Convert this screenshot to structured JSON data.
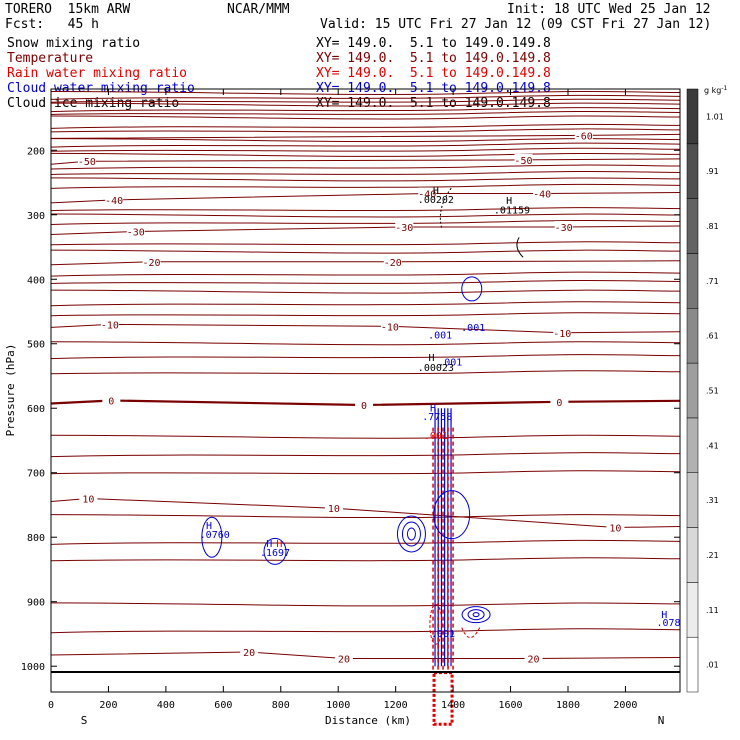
{
  "header": {
    "model": "TORERO  15km ARW",
    "center": "NCAR/MMM",
    "init": "Init: 18 UTC Wed 25 Jan 12",
    "fcst": "Fcst:   45 h",
    "valid": "Valid: 15 UTC Fri 27 Jan 12 (09 CST Fri 27 Jan 12)",
    "fields": [
      {
        "label": "Snow mixing ratio",
        "xy": "XY= 149.0.  5.1 to 149.0.149.8",
        "color": "#000000"
      },
      {
        "label": "Temperature",
        "xy": "XY= 149.0.  5.1 to 149.0.149.8",
        "color": "#7a0000"
      },
      {
        "label": "Rain water mixing ratio",
        "xy": "XY= 149.0.  5.1 to 149.0.149.8",
        "color": "#e00000"
      },
      {
        "label": "Cloud water mixing ratio",
        "xy": "XY= 149.0.  5.1 to 149.0.149.8",
        "color": "#0000d0"
      },
      {
        "label": "Cloud ice mixing ratio",
        "xy": "XY= 149.0.  5.1 to 149.0.149.8",
        "color": "#000000"
      }
    ]
  },
  "chart_data": {
    "type": "contour cross-section",
    "xlabel": "Distance (km)",
    "ylabel": "Pressure (hPa)",
    "x_ticks": [
      0,
      200,
      400,
      600,
      800,
      1000,
      1200,
      1400,
      1600,
      1800,
      2000
    ],
    "y_ticks": [
      200,
      300,
      400,
      500,
      600,
      700,
      800,
      900,
      1000
    ],
    "xlim": [
      0,
      2190
    ],
    "ylim": [
      1040,
      105
    ],
    "x_left_label": "S",
    "x_right_label": "N",
    "colorbar": {
      "unit_label": "g kg",
      "unit_sup": "-1",
      "levels": [
        ".01",
        ".11",
        ".21",
        ".31",
        ".41",
        ".51",
        ".61",
        ".71",
        ".81",
        ".91",
        "1.01"
      ]
    },
    "temperature_isotherms": [
      {
        "value": 20,
        "labels": [
          {
            "text": "20",
            "x": 690,
            "p": 978
          },
          {
            "text": "20",
            "x": 1020,
            "p": 988
          },
          {
            "text": "20",
            "x": 1680,
            "p": 988
          }
        ]
      },
      {
        "value": 10,
        "labels": [
          {
            "text": "10",
            "x": 130,
            "p": 740
          },
          {
            "text": "10",
            "x": 985,
            "p": 755
          },
          {
            "text": "10",
            "x": 1965,
            "p": 785
          }
        ]
      },
      {
        "value": 0,
        "labels": [
          {
            "text": "0",
            "x": 210,
            "p": 588
          },
          {
            "text": "0",
            "x": 1090,
            "p": 595
          },
          {
            "text": "0",
            "x": 1770,
            "p": 590
          }
        ]
      },
      {
        "value": -10,
        "labels": [
          {
            "text": "-10",
            "x": 205,
            "p": 470
          },
          {
            "text": "-10",
            "x": 1180,
            "p": 473
          },
          {
            "text": "-10",
            "x": 1780,
            "p": 483
          }
        ]
      },
      {
        "value": -20,
        "labels": [
          {
            "text": "-20",
            "x": 350,
            "p": 373
          },
          {
            "text": "-20",
            "x": 1190,
            "p": 373
          }
        ]
      },
      {
        "value": -30,
        "labels": [
          {
            "text": "-30",
            "x": 295,
            "p": 326
          },
          {
            "text": "-30",
            "x": 1230,
            "p": 319
          },
          {
            "text": "-30",
            "x": 1785,
            "p": 319
          }
        ]
      },
      {
        "value": -40,
        "labels": [
          {
            "text": "-40",
            "x": 220,
            "p": 277
          },
          {
            "text": "-40",
            "x": 1310,
            "p": 267
          },
          {
            "text": "-40",
            "x": 1710,
            "p": 267
          }
        ]
      },
      {
        "value": -50,
        "labels": [
          {
            "text": "-50",
            "x": 125,
            "p": 217
          },
          {
            "text": "-50",
            "x": 1645,
            "p": 215
          }
        ]
      },
      {
        "value": -60,
        "labels": [
          {
            "text": "-60",
            "x": 1855,
            "p": 177
          }
        ]
      }
    ],
    "annotations": [
      {
        "text": "H",
        "x": 1340,
        "p": 268,
        "color": "#000000"
      },
      {
        "text": ".00202",
        "x": 1340,
        "p": 282,
        "color": "#000000"
      },
      {
        "text": "H",
        "x": 1595,
        "p": 283,
        "color": "#000000"
      },
      {
        "text": ".01159",
        "x": 1605,
        "p": 298,
        "color": "#000000"
      },
      {
        "text": ".001",
        "x": 1355,
        "p": 492,
        "color": "#0000d0"
      },
      {
        "text": ".001",
        "x": 1470,
        "p": 480,
        "color": "#0000d0"
      },
      {
        "text": "H",
        "x": 1325,
        "p": 527,
        "color": "#000000"
      },
      {
        "text": ".001",
        "x": 1390,
        "p": 534,
        "color": "#0000d0"
      },
      {
        "text": ".00023",
        "x": 1340,
        "p": 542,
        "color": "#000000"
      },
      {
        "text": "H",
        "x": 1330,
        "p": 605,
        "color": "#0000d0"
      },
      {
        "text": ".7758",
        "x": 1345,
        "p": 618,
        "color": "#0000d0"
      },
      {
        "text": ".001",
        "x": 1340,
        "p": 648,
        "color": "#e00000"
      },
      {
        "text": "H",
        "x": 550,
        "p": 787,
        "color": "#0000d0"
      },
      {
        "text": ".0760",
        "x": 570,
        "p": 801,
        "color": "#0000d0"
      },
      {
        "text": "H",
        "x": 760,
        "p": 815,
        "color": "#0000d0"
      },
      {
        "text": "H",
        "x": 795,
        "p": 815,
        "color": "#e00000"
      },
      {
        "text": ".1697",
        "x": 780,
        "p": 829,
        "color": "#0000d0"
      },
      {
        "text": ".001",
        "x": 1365,
        "p": 955,
        "color": "#0000d0"
      },
      {
        "text": "H",
        "x": 2135,
        "p": 925,
        "color": "#0000d0"
      },
      {
        "text": ".078",
        "x": 2150,
        "p": 938,
        "color": "#0000d0"
      }
    ]
  }
}
